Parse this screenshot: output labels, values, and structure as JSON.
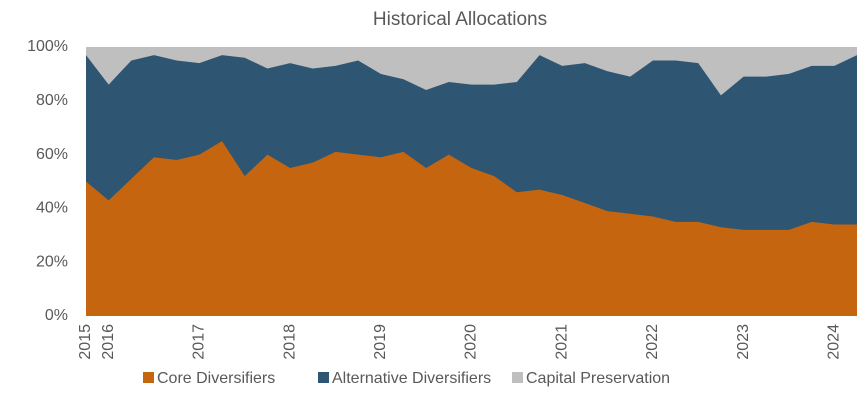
{
  "chart_data": {
    "type": "stacked_area",
    "title": "Historical Allocations",
    "categories": [
      "2015",
      "2016",
      null,
      null,
      null,
      "2017",
      null,
      null,
      null,
      "2018",
      null,
      null,
      null,
      "2019",
      null,
      null,
      null,
      "2020",
      null,
      null,
      null,
      "2021",
      null,
      null,
      null,
      "2022",
      null,
      null,
      null,
      "2023",
      null,
      null,
      null,
      "2024",
      null
    ],
    "series": [
      {
        "name": "Core Diversifiers",
        "color": "#c5650f",
        "values": [
          50,
          43,
          51,
          59,
          58,
          60,
          65,
          52,
          60,
          55,
          57,
          61,
          60,
          59,
          61,
          55,
          60,
          55,
          52,
          46,
          47,
          45,
          42,
          39,
          38,
          37,
          35,
          35,
          33,
          32,
          32,
          32,
          35,
          34,
          34
        ]
      },
      {
        "name": "Alternative Diversifiers",
        "color": "#2e5572",
        "values": [
          47,
          43,
          44,
          38,
          37,
          34,
          32,
          44,
          32,
          39,
          35,
          32,
          35,
          31,
          27,
          29,
          27,
          31,
          34,
          41,
          50,
          48,
          52,
          52,
          51,
          58,
          60,
          59,
          49,
          57,
          57,
          58,
          58,
          59,
          63
        ]
      },
      {
        "name": "Capital Preservation",
        "color": "#bfbfbf",
        "values": [
          3,
          14,
          5,
          3,
          5,
          6,
          3,
          4,
          8,
          6,
          8,
          7,
          5,
          10,
          12,
          16,
          13,
          14,
          14,
          13,
          3,
          7,
          6,
          9,
          11,
          5,
          5,
          6,
          18,
          11,
          11,
          10,
          7,
          7,
          3
        ]
      }
    ],
    "ylim": [
      0,
      100
    ],
    "yticks": [
      {
        "value": 0,
        "label": "0%"
      },
      {
        "value": 20,
        "label": "20%"
      },
      {
        "value": 40,
        "label": "40%"
      },
      {
        "value": 60,
        "label": "60%"
      },
      {
        "value": 80,
        "label": "80%"
      },
      {
        "value": 100,
        "label": "100%"
      }
    ],
    "legend": "bottom"
  }
}
